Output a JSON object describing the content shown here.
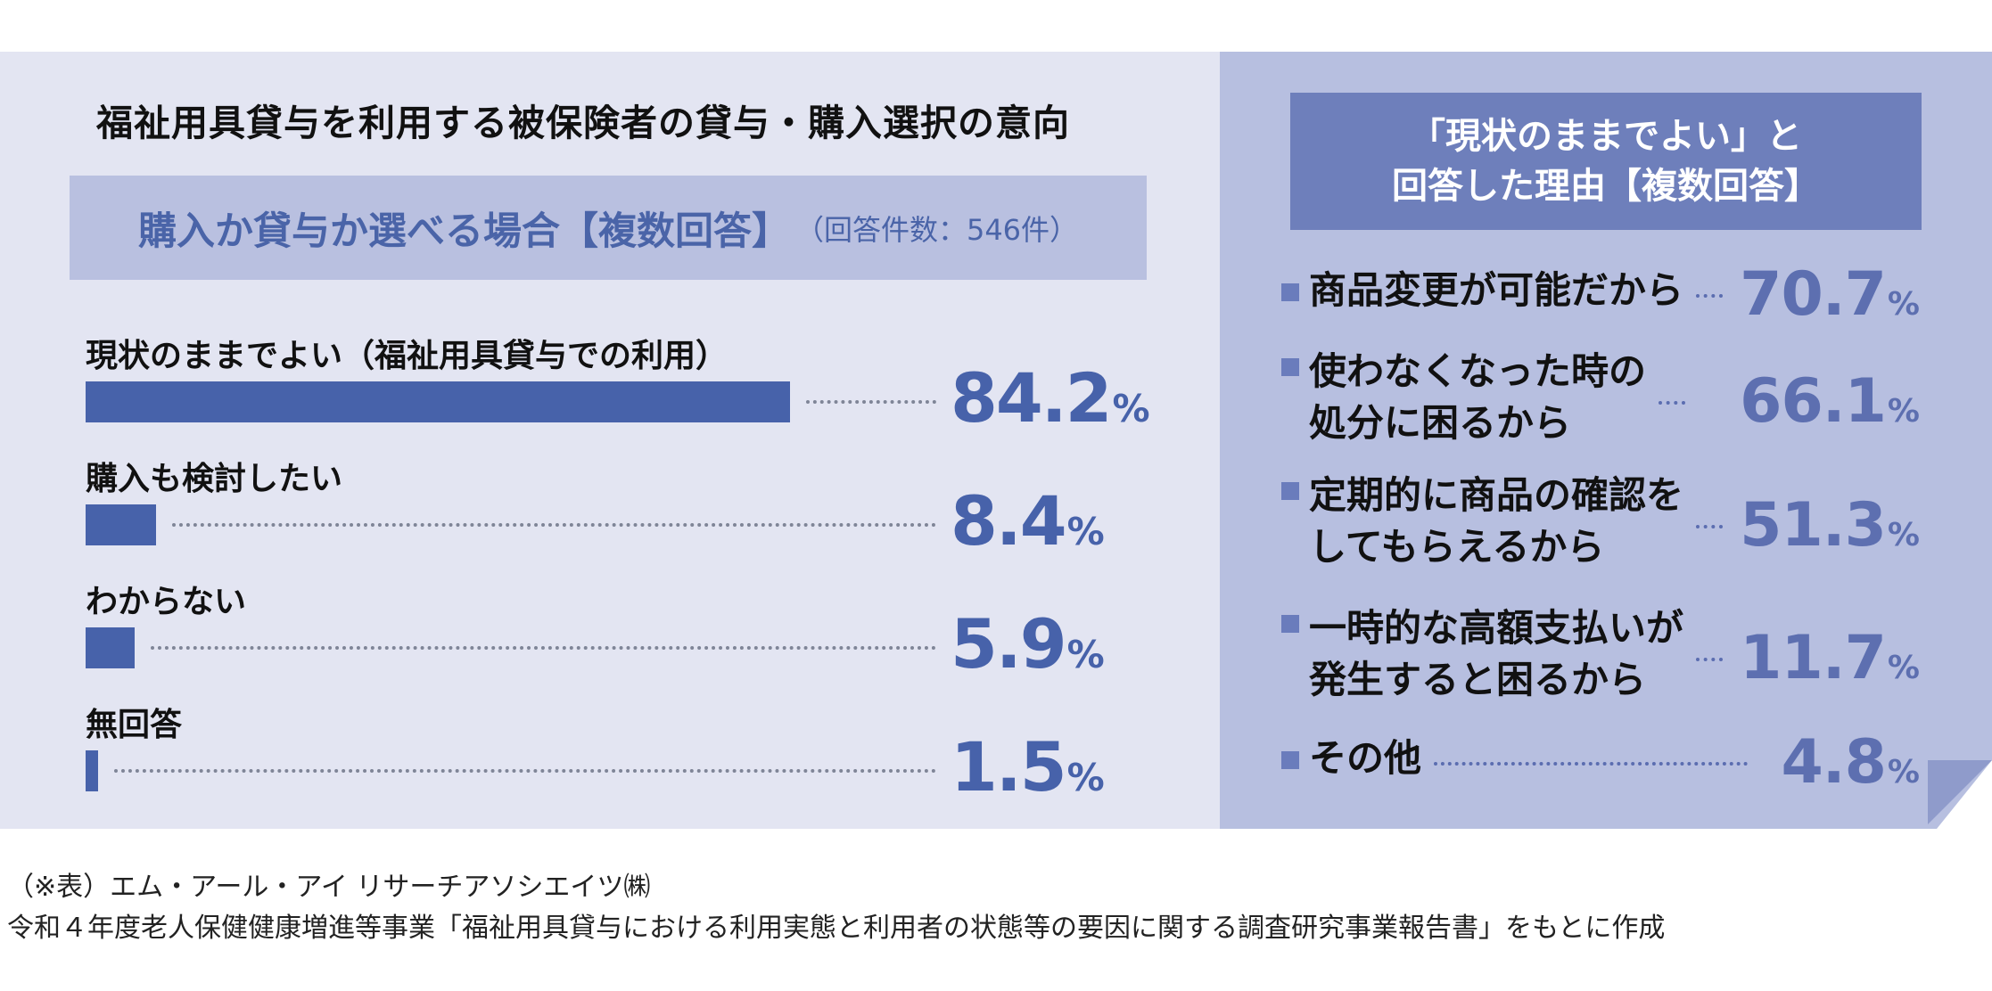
{
  "title": "福祉用具貸与を利用する被保険者の貸与・購入選択の意向",
  "left_header": {
    "label": "購入か貸与か選べる場合【複数回答】",
    "count": "（回答件数：546件）"
  },
  "right_header": {
    "line1": "「現状のままでよい」と",
    "line2": "回答した理由【複数回答】"
  },
  "percent_unit": "%",
  "chart_data": [
    {
      "type": "bar",
      "orientation": "horizontal",
      "categories": [
        "現状のままでよい（福祉用具貸与での利用）",
        "購入も検討したい",
        "わからない",
        "無回答"
      ],
      "values": [
        84.2,
        8.4,
        5.9,
        1.5
      ],
      "value_labels": [
        "84.2",
        "8.4",
        "5.9",
        "1.5"
      ],
      "unit": "%",
      "xlim": [
        0,
        100
      ],
      "color": "#4762aa"
    },
    {
      "type": "table",
      "items": [
        {
          "lines": [
            "商品変更が可能だから"
          ],
          "value": 70.7,
          "value_label": "70.7"
        },
        {
          "lines": [
            "使わなくなった時の",
            "処分に困るから"
          ],
          "value": 66.1,
          "value_label": "66.1"
        },
        {
          "lines": [
            "定期的に商品の確認を",
            "してもらえるから"
          ],
          "value": 51.3,
          "value_label": "51.3"
        },
        {
          "lines": [
            "一時的な高額支払いが",
            "発生すると困るから"
          ],
          "value": 11.7,
          "value_label": "11.7"
        },
        {
          "lines": [
            "その他"
          ],
          "value": 4.8,
          "value_label": "4.8"
        }
      ],
      "unit": "%",
      "color": "#5d6fb0"
    }
  ],
  "notes": {
    "source": "（※表）エム・アール・アイ リサーチアソシエイツ㈱",
    "basis": "令和４年度老人保健健康増進等事業「福祉用具貸与における利用実態と利用者の状態等の要因に関する調査研究事業報告書」をもとに作成"
  },
  "colors": {
    "left_background": "#e3e5f2",
    "right_background": "#b7bfe0",
    "header_band": "#b9c0e0",
    "right_header": "#6e7fbb",
    "bar": "#4762aa",
    "right_value": "#5d6fb0"
  }
}
